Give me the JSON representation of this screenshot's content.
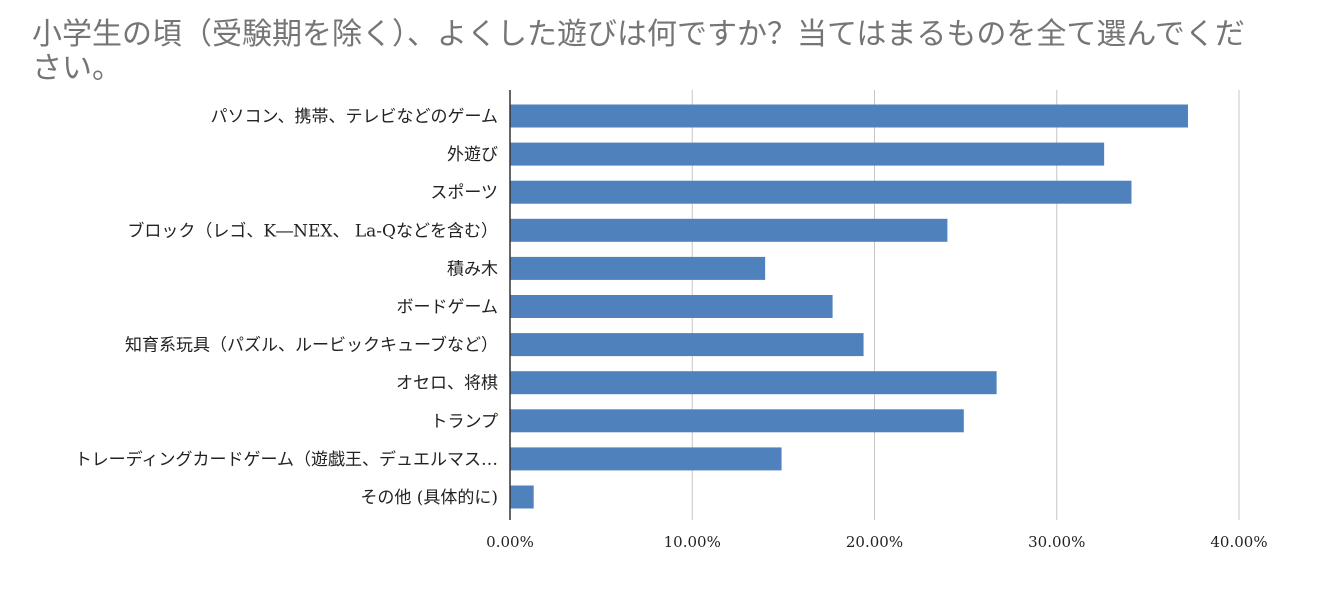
{
  "chart_data": {
    "type": "bar",
    "orientation": "horizontal",
    "title": "小学生の頃（受験期を除く）、よくした遊びは何ですか？当てはまるものを全て選んでください。",
    "xlabel": "",
    "ylabel": "",
    "xlim": [
      0,
      0.4
    ],
    "grid": true,
    "legend": "none",
    "bar_color": "#4f81bd",
    "x_ticks": [
      {
        "value": 0.0,
        "label": "0.00%"
      },
      {
        "value": 0.1,
        "label": "10.00%"
      },
      {
        "value": 0.2,
        "label": "20.00%"
      },
      {
        "value": 0.3,
        "label": "30.00%"
      },
      {
        "value": 0.4,
        "label": "40.00%"
      }
    ],
    "categories": [
      "パソコン、携帯、テレビなどのゲーム",
      "外遊び",
      "スポーツ",
      "ブロック（レゴ、K―NEX、 La-Qなどを含む）",
      "積み木",
      "ボードゲーム",
      "知育系玩具（パズル、ルービックキューブなど）",
      "オセロ、将棋",
      "トランプ",
      "トレーディングカードゲーム（遊戯王、デュエルマス…",
      "その他 (具体的に)"
    ],
    "values": [
      0.372,
      0.326,
      0.341,
      0.24,
      0.14,
      0.177,
      0.194,
      0.267,
      0.249,
      0.149,
      0.013
    ]
  }
}
